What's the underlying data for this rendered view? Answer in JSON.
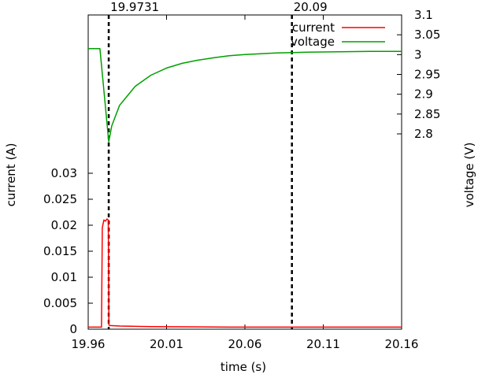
{
  "chart_data": {
    "type": "line",
    "xlabel": "time (s)",
    "ylabel_left": "current (A)",
    "ylabel_right": "voltage (V)",
    "xlim": [
      19.96,
      20.16
    ],
    "xticks": [
      19.96,
      20.01,
      20.06,
      20.11,
      20.16
    ],
    "xtick_labels": [
      "19.96",
      "20.01",
      "20.06",
      "20.11",
      "20.16"
    ],
    "ylim_left": [
      0,
      0.03
    ],
    "yticks_left": [
      0,
      0.005,
      0.01,
      0.015,
      0.02,
      0.025,
      0.03
    ],
    "ytick_labels_left": [
      "0",
      "0.005",
      "0.01",
      "0.015",
      "0.02",
      "0.025",
      "0.03"
    ],
    "ylim_right": [
      2.8,
      3.1
    ],
    "yticks_right": [
      2.8,
      2.85,
      2.9,
      2.95,
      3.0,
      3.05,
      3.1
    ],
    "ytick_labels_right": [
      "2.8",
      "2.85",
      "2.9",
      "2.95",
      "3",
      "3.05",
      "3.1"
    ],
    "markers": [
      {
        "x": 19.9731,
        "label": "19.9731"
      },
      {
        "x": 20.09,
        "label": "20.09"
      }
    ],
    "legend": {
      "placement": "top-right"
    },
    "series": [
      {
        "name": "current",
        "color": "#ff0000",
        "axis": "left",
        "x": [
          19.96,
          19.965,
          19.9685,
          19.969,
          19.97,
          19.971,
          19.972,
          19.9728,
          19.9732,
          19.974,
          19.98,
          20.0,
          20.05,
          20.1,
          20.16
        ],
        "y": [
          0.0004,
          0.0004,
          0.0004,
          0.0195,
          0.021,
          0.0208,
          0.0212,
          0.021,
          0.0008,
          0.0007,
          0.0006,
          0.0005,
          0.0004,
          0.0004,
          0.0004
        ]
      },
      {
        "name": "voltage",
        "color": "#00a000",
        "axis": "right",
        "x": [
          19.96,
          19.965,
          19.9675,
          19.9731,
          19.975,
          19.98,
          19.99,
          20.0,
          20.01,
          20.02,
          20.03,
          20.04,
          20.05,
          20.06,
          20.08,
          20.1,
          20.12,
          20.14,
          20.16
        ],
        "y": [
          3.015,
          3.015,
          3.015,
          2.78,
          2.82,
          2.872,
          2.92,
          2.948,
          2.966,
          2.978,
          2.986,
          2.992,
          2.997,
          3.0,
          3.004,
          3.006,
          3.007,
          3.008,
          3.008
        ]
      }
    ]
  }
}
